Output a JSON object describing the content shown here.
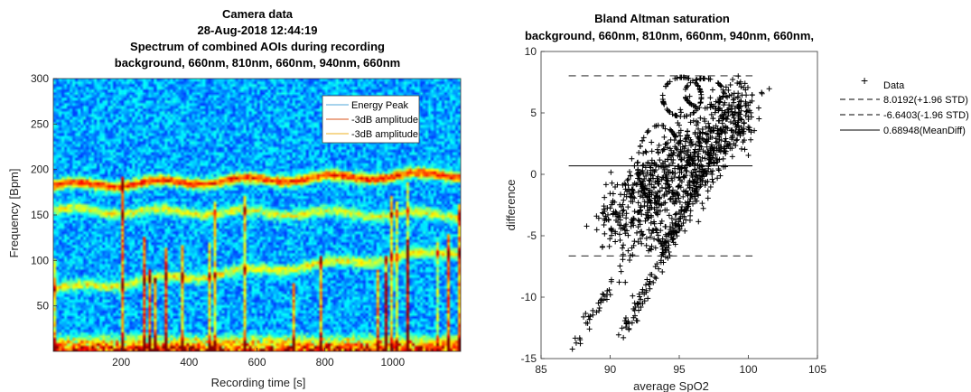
{
  "chart_data": [
    {
      "type": "heatmap",
      "title_lines": [
        "Camera data",
        "28-Aug-2018 12:44:19",
        "Spectrum of combined AOIs during recording",
        "background, 660nm, 810nm, 660nm, 940nm, 660nm"
      ],
      "xlabel": "Recording time [s]",
      "ylabel": "Frequency [Bpm]",
      "xlim": [
        0,
        1200
      ],
      "ylim": [
        0,
        300
      ],
      "xticks": [
        200,
        400,
        600,
        800,
        1000
      ],
      "yticks": [
        50,
        100,
        150,
        200,
        250,
        300
      ],
      "colormap": "jet",
      "bands": [
        {
          "name": "peak",
          "y_start": 182,
          "y_end": 195,
          "strength": 1.0
        },
        {
          "name": "mid",
          "y_start": 155,
          "y_end": 150,
          "strength": 0.55
        },
        {
          "name": "low",
          "y_start": 68,
          "y_end": 110,
          "strength": 0.6
        }
      ],
      "legend": {
        "position": "top-right",
        "entries": [
          {
            "label": "Energy Peak",
            "color": "#4fa7d8"
          },
          {
            "label": "-3dB amplitude",
            "color": "#d95319"
          },
          {
            "label": "-3dB amplitude",
            "color": "#edb120"
          }
        ]
      }
    },
    {
      "type": "scatter",
      "title_lines": [
        "Bland Altman saturation",
        "background, 660nm, 810nm, 660nm, 940nm, 660nm,"
      ],
      "xlabel": "average SpO2",
      "ylabel": "difference",
      "xlim": [
        85,
        105
      ],
      "ylim": [
        -15,
        10
      ],
      "xticks": [
        85,
        90,
        95,
        100,
        105
      ],
      "yticks": [
        -15,
        -10,
        -5,
        0,
        5,
        10
      ],
      "marker": "+",
      "series_name": "Data",
      "reference_lines": [
        {
          "label": "8.0192(+1.96 STD)",
          "y": 8.0192,
          "style": "dashed"
        },
        {
          "label": "-6.6403(-1.96 STD)",
          "y": -6.6403,
          "style": "dashed"
        },
        {
          "label": "0.68948(MeanDiff)",
          "y": 0.68948,
          "style": "solid"
        }
      ],
      "ref_line_x": [
        87,
        100.3
      ],
      "clusters": [
        {
          "x": [
            90,
            100
          ],
          "y": [
            -4,
            6
          ],
          "n": 700,
          "spread": 1.4
        },
        {
          "x": [
            87,
            93
          ],
          "y": [
            -14.5,
            -3.5
          ],
          "n": 60,
          "spread": 0.35
        },
        {
          "x": [
            91,
            98
          ],
          "y": [
            -13,
            3
          ],
          "n": 120,
          "spread": 0.4
        },
        {
          "x": [
            93,
            100
          ],
          "y": [
            -6,
            5
          ],
          "n": 200,
          "spread": 0.9
        },
        {
          "x": [
            94,
            97
          ],
          "y": [
            -6.5,
            1
          ],
          "n": 40,
          "spread": 0.5
        }
      ],
      "loops": [
        {
          "cx": 95.2,
          "cy": 6.3,
          "rx": 1.4,
          "ry": 1.6,
          "n": 60
        },
        {
          "cx": 96.8,
          "cy": 6.6,
          "rx": 1.4,
          "ry": 1.2,
          "n": 50
        },
        {
          "cx": 93.6,
          "cy": 0.8,
          "rx": 1.6,
          "ry": 3.2,
          "n": 60
        }
      ]
    }
  ]
}
